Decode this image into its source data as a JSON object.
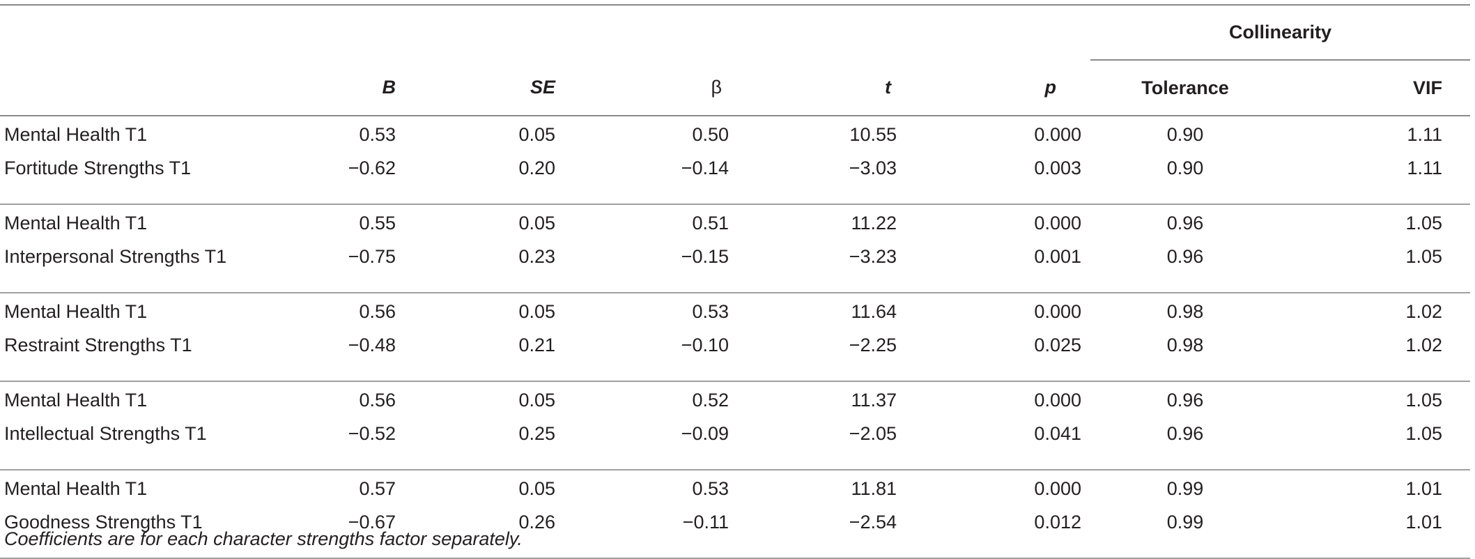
{
  "table": {
    "group_header": "Collinearity",
    "columns": {
      "label": "",
      "B": "B",
      "SE": "SE",
      "beta": "β",
      "t": "t",
      "p": "p",
      "tolerance": "Tolerance",
      "vif": "VIF"
    },
    "rows": [
      {
        "label": "Mental Health T1",
        "B": "0.53",
        "SE": "0.05",
        "beta": "0.50",
        "t": "10.55",
        "p": "0.000",
        "tolerance": "0.90",
        "vif": "1.11"
      },
      {
        "label": "Fortitude Strengths T1",
        "B": "−0.62",
        "SE": "0.20",
        "beta": "−0.14",
        "t": "−3.03",
        "p": "0.003",
        "tolerance": "0.90",
        "vif": "1.11"
      },
      {
        "label": "Mental Health T1",
        "B": "0.55",
        "SE": "0.05",
        "beta": "0.51",
        "t": "11.22",
        "p": "0.000",
        "tolerance": "0.96",
        "vif": "1.05"
      },
      {
        "label": "Interpersonal Strengths T1",
        "B": "−0.75",
        "SE": "0.23",
        "beta": "−0.15",
        "t": "−3.23",
        "p": "0.001",
        "tolerance": "0.96",
        "vif": "1.05"
      },
      {
        "label": "Mental Health T1",
        "B": "0.56",
        "SE": "0.05",
        "beta": "0.53",
        "t": "11.64",
        "p": "0.000",
        "tolerance": "0.98",
        "vif": "1.02"
      },
      {
        "label": "Restraint Strengths T1",
        "B": "−0.48",
        "SE": "0.21",
        "beta": "−0.10",
        "t": "−2.25",
        "p": "0.025",
        "tolerance": "0.98",
        "vif": "1.02"
      },
      {
        "label": "Mental Health T1",
        "B": "0.56",
        "SE": "0.05",
        "beta": "0.52",
        "t": "11.37",
        "p": "0.000",
        "tolerance": "0.96",
        "vif": "1.05"
      },
      {
        "label": "Intellectual Strengths T1",
        "B": "−0.52",
        "SE": "0.25",
        "beta": "−0.09",
        "t": "−2.05",
        "p": "0.041",
        "tolerance": "0.96",
        "vif": "1.05"
      },
      {
        "label": "Mental Health T1",
        "B": "0.57",
        "SE": "0.05",
        "beta": "0.53",
        "t": "11.81",
        "p": "0.000",
        "tolerance": "0.99",
        "vif": "1.01"
      },
      {
        "label": "Goodness Strengths T1",
        "B": "−0.67",
        "SE": "0.26",
        "beta": "−0.11",
        "t": "−2.54",
        "p": "0.012",
        "tolerance": "0.99",
        "vif": "1.01"
      }
    ],
    "note": "Coefficients are for each character strengths factor separately."
  }
}
